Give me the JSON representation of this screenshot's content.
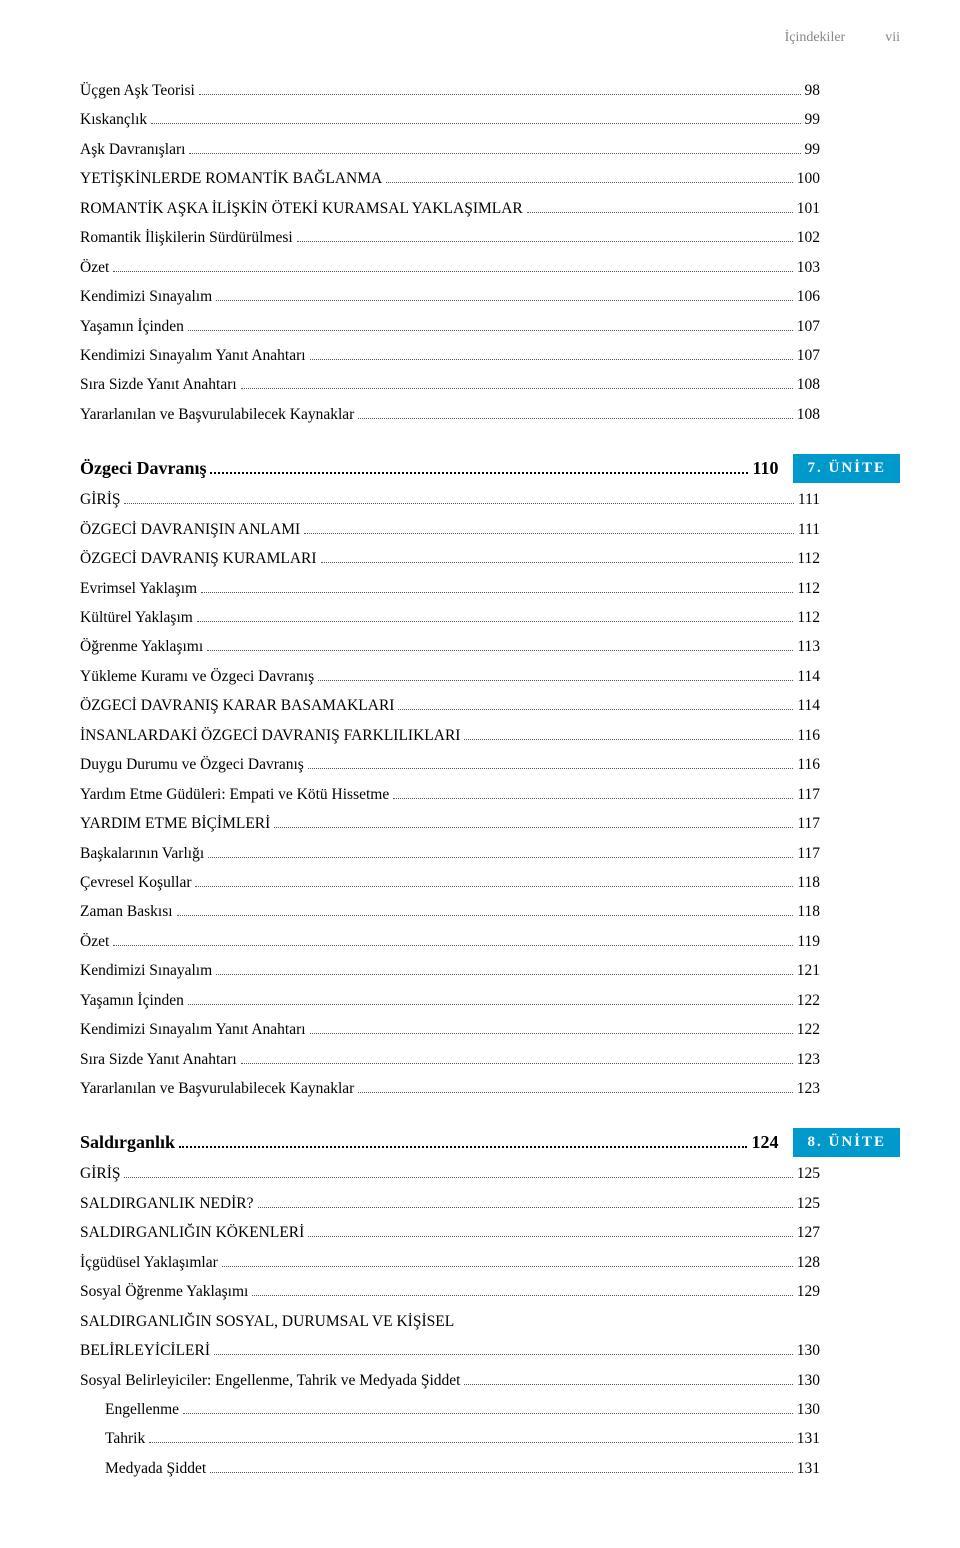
{
  "header": {
    "title": "İçindekiler",
    "pageNumeral": "vii"
  },
  "colors": {
    "unitBg": "#0099cc",
    "unitText": "#ffffff",
    "headerText": "#888888",
    "text": "#000000"
  },
  "section1": {
    "rows": [
      {
        "label": "Üçgen Aşk Teorisi",
        "page": "98",
        "indent": 0
      },
      {
        "label": "Kıskançlık",
        "page": "99",
        "indent": 0
      },
      {
        "label": "Aşk Davranışları",
        "page": "99",
        "indent": 0
      },
      {
        "label": "YETİŞKİNLERDE ROMANTİK BAĞLANMA",
        "page": "100",
        "indent": 0
      },
      {
        "label": "ROMANTİK AŞKA İLİŞKİN ÖTEKİ KURAMSAL YAKLAŞIMLAR",
        "page": "101",
        "indent": 0
      },
      {
        "label": "Romantik İlişkilerin Sürdürülmesi",
        "page": "102",
        "indent": 0
      },
      {
        "label": "Özet",
        "page": "103",
        "indent": 0
      },
      {
        "label": "Kendimizi Sınayalım",
        "page": "106",
        "indent": 0
      },
      {
        "label": "Yaşamın İçinden",
        "page": "107",
        "indent": 0
      },
      {
        "label": "Kendimizi Sınayalım Yanıt Anahtarı",
        "page": "107",
        "indent": 0
      },
      {
        "label": "Sıra Sizde Yanıt Anahtarı",
        "page": "108",
        "indent": 0
      },
      {
        "label": "Yararlanılan ve Başvurulabilecek Kaynaklar",
        "page": "108",
        "indent": 0
      }
    ]
  },
  "chapter7": {
    "title": "Özgeci Davranış",
    "page": "110",
    "unit": "7. ÜNİTE"
  },
  "section2": {
    "rows": [
      {
        "label": "GİRİŞ",
        "page": "111",
        "indent": 0
      },
      {
        "label": "ÖZGECİ DAVRANIŞIN ANLAMI",
        "page": "111",
        "indent": 0
      },
      {
        "label": "ÖZGECİ DAVRANIŞ KURAMLARI",
        "page": "112",
        "indent": 0
      },
      {
        "label": "Evrimsel Yaklaşım",
        "page": "112",
        "indent": 0
      },
      {
        "label": "Kültürel Yaklaşım",
        "page": "112",
        "indent": 0
      },
      {
        "label": "Öğrenme Yaklaşımı",
        "page": "113",
        "indent": 0
      },
      {
        "label": "Yükleme Kuramı ve Özgeci Davranış",
        "page": "114",
        "indent": 0
      },
      {
        "label": "ÖZGECİ DAVRANIŞ KARAR BASAMAKLARI",
        "page": "114",
        "indent": 0
      },
      {
        "label": "İNSANLARDAKİ ÖZGECİ DAVRANIŞ FARKLILIKLARI",
        "page": "116",
        "indent": 0
      },
      {
        "label": "Duygu Durumu ve Özgeci Davranış",
        "page": "116",
        "indent": 0
      },
      {
        "label": "Yardım Etme Güdüleri: Empati ve Kötü Hissetme",
        "page": "117",
        "indent": 0
      },
      {
        "label": "YARDIM ETME BİÇİMLERİ",
        "page": "117",
        "indent": 0
      },
      {
        "label": "Başkalarının Varlığı",
        "page": "117",
        "indent": 0
      },
      {
        "label": "Çevresel Koşullar",
        "page": "118",
        "indent": 0
      },
      {
        "label": "Zaman Baskısı",
        "page": "118",
        "indent": 0
      },
      {
        "label": "Özet",
        "page": "119",
        "indent": 0
      },
      {
        "label": "Kendimizi Sınayalım",
        "page": "121",
        "indent": 0
      },
      {
        "label": "Yaşamın İçinden",
        "page": "122",
        "indent": 0
      },
      {
        "label": "Kendimizi Sınayalım Yanıt Anahtarı",
        "page": "122",
        "indent": 0
      },
      {
        "label": "Sıra Sizde Yanıt Anahtarı",
        "page": "123",
        "indent": 0
      },
      {
        "label": "Yararlanılan ve Başvurulabilecek Kaynaklar",
        "page": "123",
        "indent": 0
      }
    ]
  },
  "chapter8": {
    "title": "Saldırganlık",
    "page": "124",
    "unit": "8. ÜNİTE"
  },
  "section3": {
    "rows": [
      {
        "label": "GİRİŞ",
        "page": "125",
        "indent": 0
      },
      {
        "label": "SALDIRGANLIK NEDİR?",
        "page": "125",
        "indent": 0
      },
      {
        "label": "SALDIRGANLIĞIN KÖKENLERİ",
        "page": "127",
        "indent": 0
      },
      {
        "label": "İçgüdüsel Yaklaşımlar",
        "page": "128",
        "indent": 0
      },
      {
        "label": "Sosyal Öğrenme Yaklaşımı",
        "page": "129",
        "indent": 0
      },
      {
        "label": "SALDIRGANLIĞIN SOSYAL, DURUMSAL VE KİŞİSEL",
        "page": "",
        "indent": 0
      },
      {
        "label": "BELİRLEYİCİLERİ",
        "page": "130",
        "indent": 0
      },
      {
        "label": "Sosyal Belirleyiciler: Engellenme, Tahrik ve Medyada Şiddet",
        "page": "130",
        "indent": 0
      },
      {
        "label": "Engellenme",
        "page": "130",
        "indent": 1
      },
      {
        "label": "Tahrik",
        "page": "131",
        "indent": 1
      },
      {
        "label": "Medyada Şiddet",
        "page": "131",
        "indent": 1
      }
    ]
  }
}
